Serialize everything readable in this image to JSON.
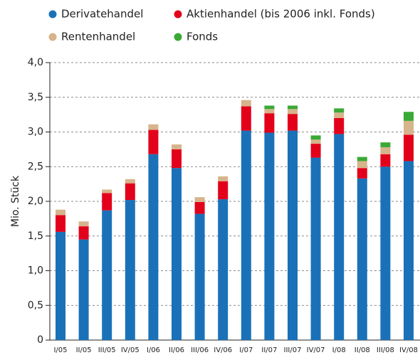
{
  "chart_data": {
    "type": "stacked_bar",
    "ylabel": "Mio. Stück",
    "categories": [
      "I/05",
      "II/05",
      "III/05",
      "IV/05",
      "I/06",
      "II/06",
      "III/06",
      "IV/06",
      "I/07",
      "II/07",
      "III/07",
      "IV/07",
      "I/08",
      "II/08",
      "III/08",
      "IV/08"
    ],
    "series": [
      {
        "name": "Derivatehandel",
        "color": "#1a71b8",
        "values": [
          1.56,
          1.45,
          1.87,
          2.02,
          2.68,
          2.48,
          1.82,
          2.03,
          3.02,
          2.99,
          3.02,
          2.63,
          2.97,
          2.33,
          2.5,
          2.58
        ]
      },
      {
        "name": "Aktienhandel (bis 2006 inkl. Fonds)",
        "color": "#e3001b",
        "values": [
          0.24,
          0.19,
          0.25,
          0.24,
          0.35,
          0.27,
          0.17,
          0.26,
          0.35,
          0.28,
          0.24,
          0.2,
          0.23,
          0.15,
          0.18,
          0.38
        ]
      },
      {
        "name": "Rentenhandel",
        "color": "#d6b48c",
        "values": [
          0.08,
          0.07,
          0.05,
          0.06,
          0.08,
          0.07,
          0.07,
          0.07,
          0.09,
          0.06,
          0.07,
          0.06,
          0.08,
          0.1,
          0.1,
          0.2
        ]
      },
      {
        "name": "Fonds",
        "color": "#3aa935",
        "values": [
          0,
          0,
          0,
          0,
          0,
          0,
          0,
          0,
          0,
          0.05,
          0.05,
          0.06,
          0.06,
          0.06,
          0.07,
          0.13
        ]
      }
    ],
    "ylim": [
      0,
      4
    ],
    "yticks": [
      0,
      {
        "value": 0.5,
        "label": "0,5"
      },
      {
        "value": 1,
        "label": "1,0"
      },
      {
        "value": 1.5,
        "label": "1,5"
      },
      {
        "value": 2,
        "label": "2,0"
      },
      {
        "value": 2.5,
        "label": "2,5"
      },
      {
        "value": 3,
        "label": "3,0"
      },
      {
        "value": 3.5,
        "label": "3,5"
      },
      {
        "value": 4,
        "label": "4,0"
      }
    ],
    "grid": true
  }
}
